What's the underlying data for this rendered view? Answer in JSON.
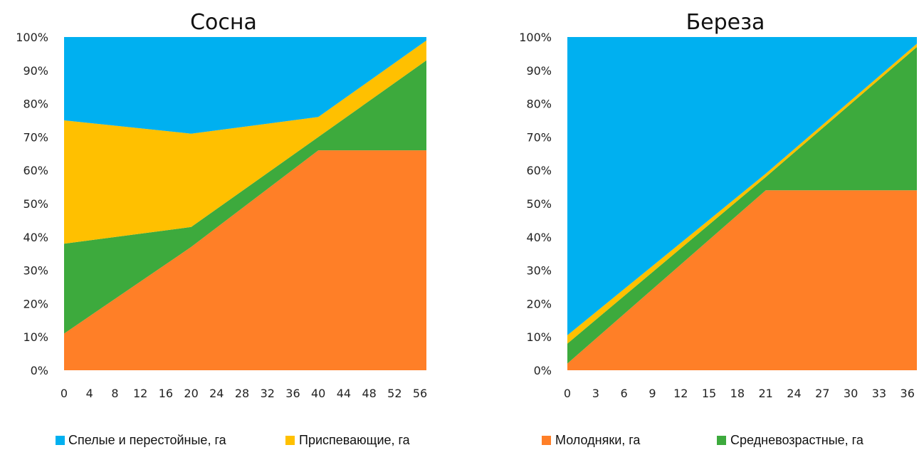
{
  "chart_data": [
    {
      "type": "area",
      "stacked": "percent",
      "title": "Сосна",
      "xlabel": "",
      "ylabel": "",
      "xlim": [
        0,
        57
      ],
      "ylim": [
        0,
        100
      ],
      "x_ticks": [
        "0",
        "4",
        "8",
        "12",
        "16",
        "20",
        "24",
        "28",
        "32",
        "36",
        "40",
        "44",
        "48",
        "52",
        "56"
      ],
      "y_ticks": [
        "0%",
        "10%",
        "20%",
        "30%",
        "40%",
        "50%",
        "60%",
        "70%",
        "80%",
        "90%",
        "100%"
      ],
      "grid": false,
      "x": [
        0,
        20,
        40,
        57
      ],
      "series": [
        {
          "name": "Молодняки, га",
          "color": "#FF7F27",
          "values": [
            11,
            37,
            66,
            66
          ]
        },
        {
          "name": "Средневозрастные, га",
          "color": "#3DAA3D",
          "values": [
            27,
            6,
            4,
            27
          ]
        },
        {
          "name": "Приспевающие, га",
          "color": "#FFC000",
          "values": [
            37,
            28,
            6,
            6
          ]
        },
        {
          "name": "Спелые и перестойные, га",
          "color": "#00B0F0",
          "values": [
            25,
            29,
            24,
            1
          ]
        }
      ]
    },
    {
      "type": "area",
      "stacked": "percent",
      "title": "Береза",
      "xlabel": "",
      "ylabel": "",
      "xlim": [
        0,
        37
      ],
      "ylim": [
        0,
        100
      ],
      "x_ticks": [
        "0",
        "3",
        "6",
        "9",
        "12",
        "15",
        "18",
        "21",
        "24",
        "27",
        "30",
        "33",
        "36"
      ],
      "y_ticks": [
        "0%",
        "10%",
        "20%",
        "30%",
        "40%",
        "50%",
        "60%",
        "70%",
        "80%",
        "90%",
        "100%"
      ],
      "grid": false,
      "x": [
        0,
        21,
        37
      ],
      "series": [
        {
          "name": "Молодняки, га",
          "color": "#FF7F27",
          "values": [
            2,
            54,
            54
          ]
        },
        {
          "name": "Средневозрастные, га",
          "color": "#3DAA3D",
          "values": [
            6,
            4,
            43
          ]
        },
        {
          "name": "Приспевающие, га",
          "color": "#FFC000",
          "values": [
            2.5,
            1,
            1
          ]
        },
        {
          "name": "Спелые и перестойные, га",
          "color": "#00B0F0",
          "values": [
            89.5,
            41,
            2
          ]
        }
      ]
    }
  ],
  "legend": [
    {
      "label": "Спелые и перестойные, га",
      "color": "#00B0F0"
    },
    {
      "label": "Приспевающие, га",
      "color": "#FFC000"
    },
    {
      "label": "Молодняки, га",
      "color": "#FF7F27"
    },
    {
      "label": "Средневозрастные, га",
      "color": "#3DAA3D"
    }
  ]
}
